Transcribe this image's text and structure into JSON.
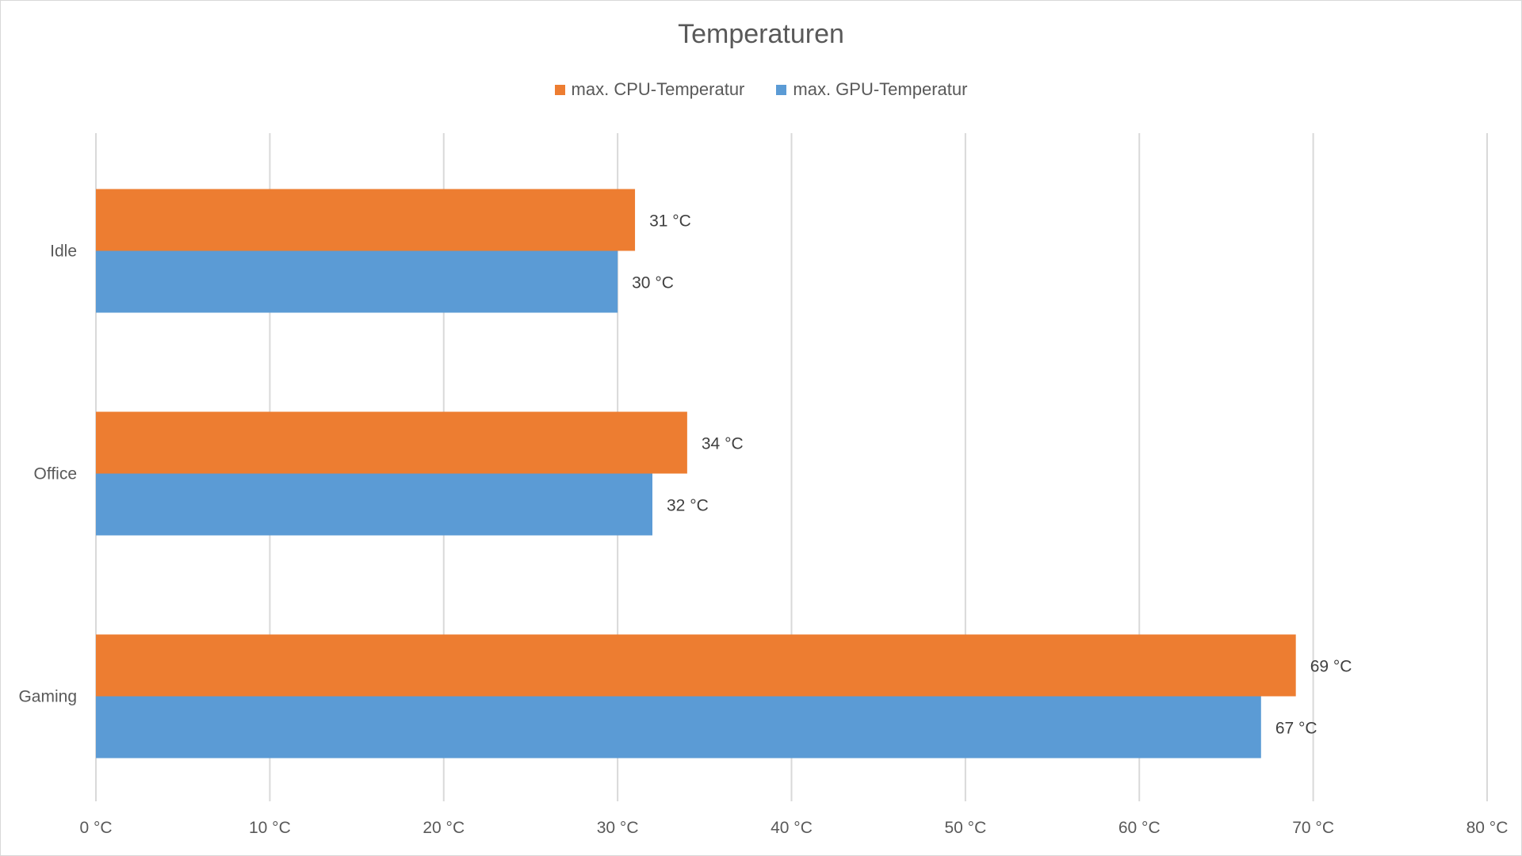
{
  "chart_data": {
    "type": "bar",
    "orientation": "horizontal",
    "title": "Temperaturen",
    "categories": [
      "Idle",
      "Office",
      "Gaming"
    ],
    "series": [
      {
        "name": "max. CPU-Temperatur",
        "color": "#ED7D31",
        "values": [
          31,
          34,
          69
        ],
        "labels": [
          "31 °C",
          "34 °C",
          "69 °C"
        ]
      },
      {
        "name": "max. GPU-Temperatur",
        "color": "#5B9BD5",
        "values": [
          30,
          32,
          67
        ],
        "labels": [
          "30 °C",
          "32 °C",
          "67 °C"
        ]
      }
    ],
    "xlim": [
      0,
      80
    ],
    "xticks": [
      0,
      10,
      20,
      30,
      40,
      50,
      60,
      70,
      80
    ],
    "xtick_labels": [
      "0 °C",
      "10 °C",
      "20 °C",
      "30 °C",
      "40 °C",
      "50 °C",
      "60 °C",
      "70 °C",
      "80 °C"
    ],
    "xlabel": "",
    "ylabel": "",
    "grid": "vertical",
    "legend": "top-center"
  }
}
